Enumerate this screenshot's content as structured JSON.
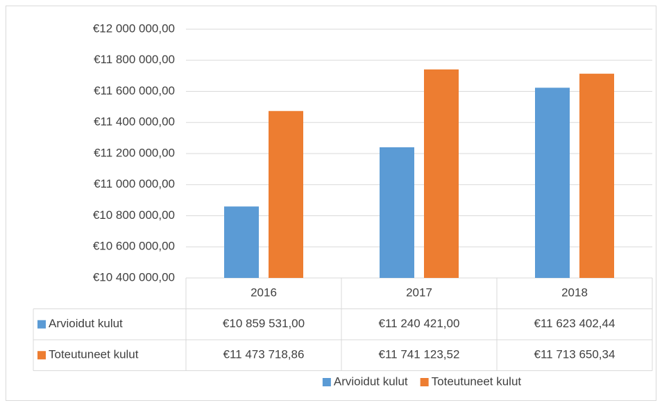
{
  "chart_data": {
    "type": "bar",
    "categories": [
      "2016",
      "2017",
      "2018"
    ],
    "series": [
      {
        "name": "Arvioidut kulut",
        "color": "#5b9bd5",
        "values": [
          10859531.0,
          11240421.0,
          11623402.44
        ],
        "value_labels": [
          "€10 859 531,00",
          "€11 240 421,00",
          "€11 623 402,44"
        ]
      },
      {
        "name": "Toteutuneet kulut",
        "color": "#ed7d31",
        "values": [
          11473718.86,
          11741123.52,
          11713650.34
        ],
        "value_labels": [
          "€11 473 718,86",
          "€11 741 123,52",
          "€11 713 650,34"
        ]
      }
    ],
    "ylim": [
      10400000,
      12000000
    ],
    "yticks": [
      {
        "value": 10400000,
        "label": "€10 400 000,00"
      },
      {
        "value": 10600000,
        "label": "€10 600 000,00"
      },
      {
        "value": 10800000,
        "label": "€10 800 000,00"
      },
      {
        "value": 11000000,
        "label": "€11 000 000,00"
      },
      {
        "value": 11200000,
        "label": "€11 200 000,00"
      },
      {
        "value": 11400000,
        "label": "€11 400 000,00"
      },
      {
        "value": 11600000,
        "label": "€11 600 000,00"
      },
      {
        "value": 11800000,
        "label": "€11 800 000,00"
      },
      {
        "value": 12000000,
        "label": "€12 000 000,00"
      }
    ],
    "grid": true,
    "legend": "bottom",
    "data_table": true
  }
}
